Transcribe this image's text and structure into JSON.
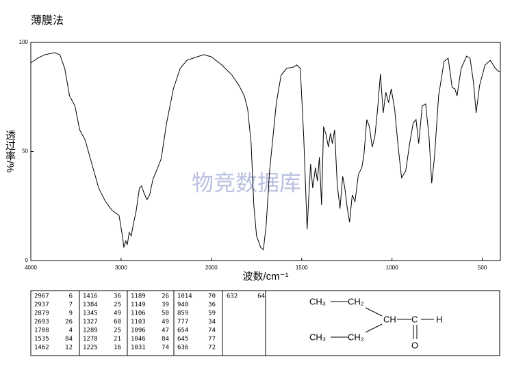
{
  "title": "薄膜法",
  "chart_data": {
    "type": "line",
    "color": "#000000",
    "ylabel": "透过率/%",
    "xlabel": "波数/cm⁻¹",
    "watermark": "物竞数据库",
    "xlim": [
      4000,
      400
    ],
    "ylim": [
      0,
      100
    ],
    "xticks": [
      4000,
      3000,
      2000,
      1500,
      1000,
      500
    ],
    "yticks": [
      0,
      50,
      100
    ],
    "x": [
      4000,
      3925,
      3850,
      3737,
      3677,
      3624,
      3571,
      3511,
      3459,
      3398,
      3323,
      3248,
      3173,
      3098,
      3023,
      2985,
      2970,
      2947,
      2932,
      2910,
      2887,
      2865,
      2835,
      2797,
      2774,
      2744,
      2714,
      2684,
      2647,
      2609,
      2579,
      2556,
      2496,
      2421,
      2346,
      2271,
      2158,
      2083,
      2000,
      1943,
      1886,
      1848,
      1818,
      1799,
      1780,
      1765,
      1750,
      1727,
      1712,
      1697,
      1678,
      1659,
      1640,
      1614,
      1583,
      1545,
      1527,
      1508,
      1489,
      1470,
      1451,
      1439,
      1424,
      1413,
      1402,
      1390,
      1379,
      1367,
      1352,
      1341,
      1330,
      1318,
      1303,
      1288,
      1273,
      1261,
      1250,
      1235,
      1220,
      1205,
      1186,
      1167,
      1155,
      1140,
      1125,
      1110,
      1095,
      1080,
      1064,
      1049,
      1034,
      1019,
      1004,
      985,
      966,
      947,
      924,
      902,
      883,
      867,
      852,
      833,
      814,
      795,
      780,
      765,
      742,
      712,
      689,
      667,
      652,
      640,
      617,
      587,
      568,
      549,
      534,
      515,
      485,
      455,
      428,
      405
    ],
    "values": [
      90.6,
      92.8,
      94.3,
      95.3,
      94.3,
      88,
      75.5,
      70.8,
      59.9,
      55.2,
      44.2,
      33.2,
      27,
      22.9,
      20.7,
      11.3,
      6,
      9,
      7.2,
      12.9,
      11.3,
      16.6,
      22.3,
      33.2,
      34.2,
      30.7,
      27.9,
      30.1,
      37.3,
      41.1,
      44.2,
      46.7,
      63,
      78.7,
      88.1,
      91.8,
      93.4,
      94.4,
      93.4,
      89.7,
      85,
      80.3,
      75.5,
      69.3,
      53.6,
      25.4,
      11.3,
      6,
      5,
      16,
      41,
      56.7,
      72.4,
      85,
      88.1,
      88.7,
      89.7,
      88.1,
      56.7,
      14.4,
      44.2,
      33.2,
      42.6,
      36.4,
      47.3,
      25.4,
      61.4,
      58.3,
      52,
      58.3,
      53.6,
      59.9,
      34.8,
      23.8,
      38.6,
      33.2,
      25.4,
      17.6,
      30.1,
      27,
      39.5,
      42.6,
      48.9,
      64.6,
      61.4,
      52,
      56.7,
      69.3,
      85.6,
      67.7,
      77.1,
      72.4,
      78.7,
      69.3,
      52,
      37.9,
      41.1,
      53.6,
      63,
      64.6,
      53.6,
      70.8,
      71.8,
      56.7,
      35.4,
      47.3,
      75.5,
      91.2,
      92.8,
      79.3,
      78.7,
      75.5,
      88.1,
      93.7,
      92.8,
      81.8,
      67.7,
      80.3,
      89.7,
      91.8,
      88.1,
      86.5
    ]
  },
  "peaks": [
    [
      2967,
      6
    ],
    [
      2937,
      7
    ],
    [
      2879,
      9
    ],
    [
      2693,
      26
    ],
    [
      1708,
      4
    ],
    [
      1535,
      84
    ],
    [
      1462,
      12
    ],
    [
      1416,
      36
    ],
    [
      1384,
      25
    ],
    [
      1345,
      49
    ],
    [
      1327,
      60
    ],
    [
      1289,
      25
    ],
    [
      1278,
      21
    ],
    [
      1225,
      16
    ],
    [
      1189,
      26
    ],
    [
      1149,
      39
    ],
    [
      1106,
      50
    ],
    [
      1103,
      49
    ],
    [
      1096,
      47
    ],
    [
      1046,
      84
    ],
    [
      1031,
      74
    ],
    [
      1014,
      70
    ],
    [
      948,
      36
    ],
    [
      859,
      59
    ],
    [
      777,
      34
    ],
    [
      654,
      74
    ],
    [
      645,
      77
    ],
    [
      636,
      72
    ],
    [
      632,
      64
    ]
  ],
  "structure": {
    "atoms": [
      "CH₃",
      "CH₂",
      "CH",
      "C",
      "H",
      "O",
      "CH₃",
      "CH₂"
    ]
  }
}
